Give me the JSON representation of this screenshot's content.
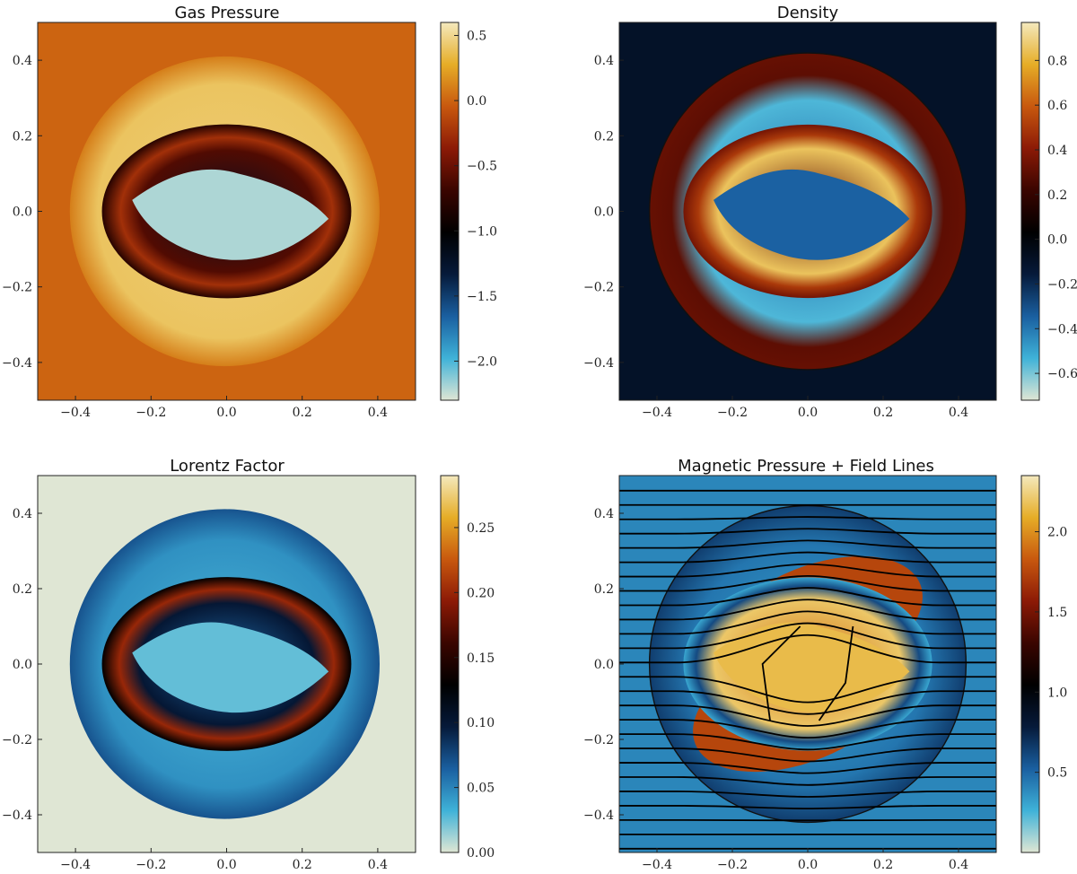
{
  "colors": {
    "cmap": [
      "#dfe6d4",
      "#3fb2d8",
      "#1a5fa0",
      "#061a3a",
      "#000000",
      "#3a0500",
      "#8c1a06",
      "#c8580e",
      "#e6ad27",
      "#f4e9bd"
    ]
  },
  "chart_data": [
    {
      "type": "heatmap",
      "title": "Gas Pressure",
      "xlim": [
        -0.5,
        0.5
      ],
      "ylim": [
        -0.5,
        0.5
      ],
      "xticks": [
        "−0.4",
        "−0.2",
        "0.0",
        "0.2",
        "0.4"
      ],
      "yticks": [
        "−0.4",
        "−0.2",
        "0.0",
        "0.2",
        "0.4"
      ],
      "colorbar": {
        "min": -2.3,
        "max": 0.6,
        "ticks": [
          -2.0,
          -1.5,
          -1.0,
          -0.5,
          0.0,
          0.5
        ],
        "tick_labels": [
          "−2.0",
          "−1.5",
          "−1.0",
          "−0.5",
          "0.0",
          "0.5"
        ]
      },
      "background_value": 0.0,
      "features": {
        "shell_radius": 0.41,
        "shell_center_x": -0.005,
        "inner_cavity_value": -2.2,
        "ring_value": -0.7,
        "shell_value": 0.45
      },
      "field_lines": false
    },
    {
      "type": "heatmap",
      "title": "Density",
      "xlim": [
        -0.5,
        0.5
      ],
      "ylim": [
        -0.5,
        0.5
      ],
      "xticks": [
        "−0.4",
        "−0.2",
        "0.0",
        "0.2",
        "0.4"
      ],
      "yticks": [
        "−0.4",
        "−0.2",
        "0.0",
        "0.2",
        "0.4"
      ],
      "colorbar": {
        "min": -0.72,
        "max": 0.97,
        "ticks": [
          -0.6,
          -0.4,
          -0.2,
          0.0,
          0.2,
          0.4,
          0.6,
          0.8
        ],
        "tick_labels": [
          "−0.6",
          "−0.4",
          "−0.2",
          "0.0",
          "0.2",
          "0.4",
          "0.6",
          "0.8"
        ]
      },
      "background_value": -0.1,
      "features": {
        "shell_radius": 0.42,
        "shell_center_x": 0.0,
        "inner_cavity_value": -0.35,
        "ring_value": 0.7,
        "shell_value": 0.3
      },
      "field_lines": false
    },
    {
      "type": "heatmap",
      "title": "Lorentz Factor",
      "xlim": [
        -0.5,
        0.5
      ],
      "ylim": [
        -0.5,
        0.5
      ],
      "xticks": [
        "−0.4",
        "−0.2",
        "0.0",
        "0.2",
        "0.4"
      ],
      "yticks": [
        "−0.4",
        "−0.2",
        "0.0",
        "0.2",
        "0.4"
      ],
      "colorbar": {
        "min": 0.0,
        "max": 0.29,
        "ticks": [
          0.0,
          0.05,
          0.1,
          0.15,
          0.2,
          0.25
        ],
        "tick_labels": [
          "0.00",
          "0.05",
          "0.10",
          "0.15",
          "0.20",
          "0.25"
        ]
      },
      "background_value": 0.0,
      "features": {
        "shell_radius": 0.41,
        "shell_center_x": -0.005,
        "inner_cavity_value": 0.025,
        "ring_value": 0.14,
        "shell_value": 0.045
      },
      "field_lines": false
    },
    {
      "type": "heatmap",
      "title": "Magnetic Pressure + Field Lines",
      "xlim": [
        -0.5,
        0.5
      ],
      "ylim": [
        -0.5,
        0.5
      ],
      "xticks": [
        "−0.4",
        "−0.2",
        "0.0",
        "0.2",
        "0.4"
      ],
      "yticks": [
        "−0.4",
        "−0.2",
        "0.0",
        "0.2",
        "0.4"
      ],
      "colorbar": {
        "min": 0.0,
        "max": 2.35,
        "ticks": [
          0.5,
          1.0,
          1.5,
          2.0
        ],
        "tick_labels": [
          "0.5",
          "1.0",
          "1.5",
          "2.0"
        ]
      },
      "background_value": 0.4,
      "features": {
        "shell_radius": 0.42,
        "shell_center_x": 0.0,
        "inner_cavity_value": 2.15,
        "ring_value": 1.6,
        "shell_value": 0.6
      },
      "field_lines": true
    }
  ]
}
